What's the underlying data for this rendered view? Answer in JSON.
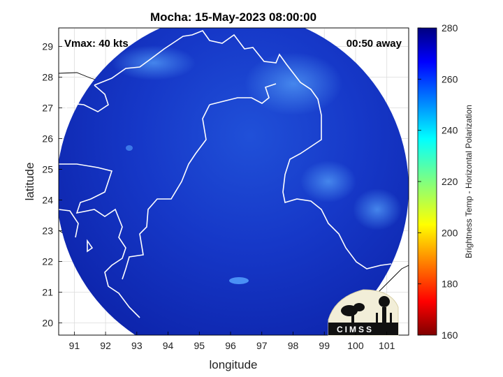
{
  "title": "Mocha: 15-May-2023 08:00:00",
  "annotations": {
    "vmax": "Vmax: 40 kts",
    "time_away": "00:50 away"
  },
  "axes": {
    "xlabel": "longitude",
    "ylabel": "latitude",
    "xticks": [
      "91",
      "92",
      "93",
      "94",
      "95",
      "96",
      "97",
      "98",
      "99",
      "100",
      "101"
    ],
    "yticks": [
      "29",
      "28",
      "27",
      "26",
      "25",
      "24",
      "23",
      "22",
      "21",
      "20"
    ],
    "xlim": [
      90.5,
      101.7
    ],
    "ylim": [
      19.6,
      29.6
    ],
    "grid": true
  },
  "colorbar": {
    "label": "Brightness Temp - Horizontal Polarization",
    "ticks": [
      "280",
      "260",
      "240",
      "220",
      "200",
      "180",
      "160"
    ],
    "range": [
      160,
      280
    ],
    "colormap": "jet"
  },
  "logo": {
    "text": "CIMSS"
  },
  "colors": {
    "field_dark": "#0a1a9a",
    "field_mid": "#1a3fd0",
    "field_light": "#3a78ea",
    "coast": "#ffffff"
  }
}
